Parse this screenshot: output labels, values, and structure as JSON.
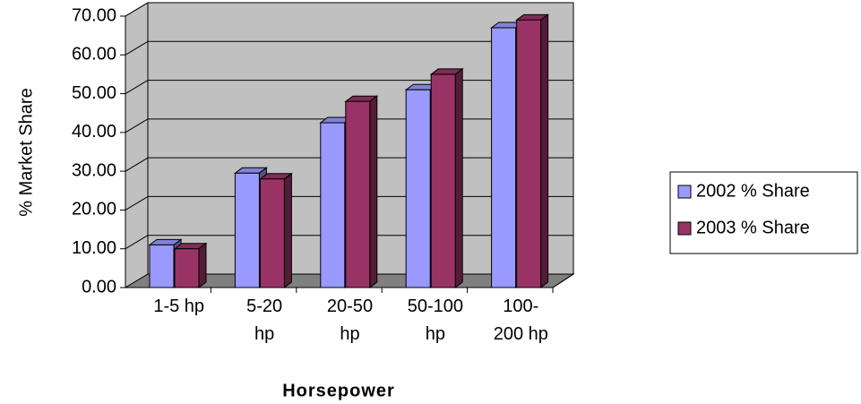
{
  "chart_data": {
    "type": "bar3d",
    "x_label": "Horsepower",
    "y_label": "% Market Share",
    "categories": [
      "1-5 hp",
      "5-20\nhp",
      "20-50\nhp",
      "50-100\nhp",
      "100-\n200 hp"
    ],
    "series": [
      {
        "name": "2002 % Share",
        "color": "#9999ff",
        "values": [
          11,
          29.5,
          42.5,
          51,
          67
        ]
      },
      {
        "name": "2003 % Share",
        "color": "#993366",
        "values": [
          10,
          28,
          48,
          55,
          69
        ]
      }
    ],
    "ylim": [
      0,
      70
    ],
    "yticks": [
      {
        "value": 0,
        "label": "0.00"
      },
      {
        "value": 10,
        "label": "10.00"
      },
      {
        "value": 20,
        "label": "20.00"
      },
      {
        "value": 30,
        "label": "30.00"
      },
      {
        "value": 40,
        "label": "40.00"
      },
      {
        "value": 50,
        "label": "50.00"
      },
      {
        "value": 60,
        "label": "60.00"
      },
      {
        "value": 70,
        "label": "70.00"
      }
    ],
    "grid": true,
    "legend": "right"
  }
}
